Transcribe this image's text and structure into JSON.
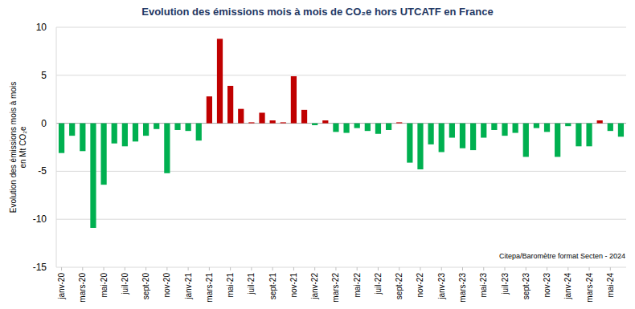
{
  "chart_data": {
    "type": "bar",
    "title": "Evolution des émissions mois à mois de CO₂e hors UTCATF en France",
    "y_label": [
      "Evolution des émissions mois à mois",
      "en Mt CO₂e"
    ],
    "annotation": "Citepa/Baromètre format Secten - 2024",
    "categories": [
      "janv-20",
      null,
      "mars-20",
      null,
      "mai-20",
      null,
      "juil-20",
      null,
      "sept-20",
      null,
      "nov-20",
      null,
      "janv-21",
      null,
      "mars-21",
      null,
      "mai-21",
      null,
      "juil-21",
      null,
      "sept-21",
      null,
      "nov-21",
      null,
      "janv-22",
      null,
      "mars-22",
      null,
      "mai-22",
      null,
      "juil-22",
      null,
      "sept-22",
      null,
      "nov-22",
      null,
      "janv-23",
      null,
      "mars-23",
      null,
      "mai-23",
      null,
      "juil-23",
      null,
      "sept-23",
      null,
      "nov-23",
      null,
      "janv-24",
      null,
      "mars-24",
      null,
      "mai-24",
      null
    ],
    "values": [
      -3.1,
      -1.3,
      -2.9,
      -10.9,
      -6.4,
      -2.1,
      -2.4,
      -1.9,
      -1.3,
      -0.6,
      -5.2,
      -0.7,
      -0.8,
      -1.8,
      2.8,
      8.8,
      3.9,
      1.5,
      0.1,
      1.1,
      0.3,
      0.1,
      4.9,
      1.4,
      -0.2,
      0.3,
      -0.9,
      -1.0,
      -0.5,
      -0.8,
      -1.1,
      -0.7,
      0.1,
      -4.1,
      -4.8,
      -2.2,
      -3.0,
      -1.5,
      -2.6,
      -2.8,
      -1.5,
      -0.7,
      -1.3,
      -1.0,
      -3.5,
      -0.5,
      -0.9,
      -3.5,
      -0.3,
      -2.4,
      -2.4,
      0.3,
      -0.8,
      -1.4
    ],
    "colors": [
      "#00b050",
      "#00b050",
      "#00b050",
      "#00b050",
      "#00b050",
      "#00b050",
      "#00b050",
      "#00b050",
      "#00b050",
      "#00b050",
      "#00b050",
      "#00b050",
      "#00b050",
      "#00b050",
      "#c00000",
      "#c00000",
      "#c00000",
      "#c00000",
      "#c00000",
      "#c00000",
      "#c00000",
      "#c00000",
      "#c00000",
      "#c00000",
      "#00b050",
      "#c00000",
      "#00b050",
      "#00b050",
      "#00b050",
      "#00b050",
      "#00b050",
      "#00b050",
      "#c00000",
      "#00b050",
      "#00b050",
      "#00b050",
      "#00b050",
      "#00b050",
      "#00b050",
      "#00b050",
      "#00b050",
      "#00b050",
      "#00b050",
      "#00b050",
      "#00b050",
      "#00b050",
      "#00b050",
      "#00b050",
      "#00b050",
      "#00b050",
      "#00b050",
      "#c00000",
      "#00b050",
      "#00b050"
    ],
    "ylim": [
      -15,
      10
    ],
    "yticks": [
      -15,
      -10,
      -5,
      0,
      5,
      10
    ],
    "grid": true
  }
}
